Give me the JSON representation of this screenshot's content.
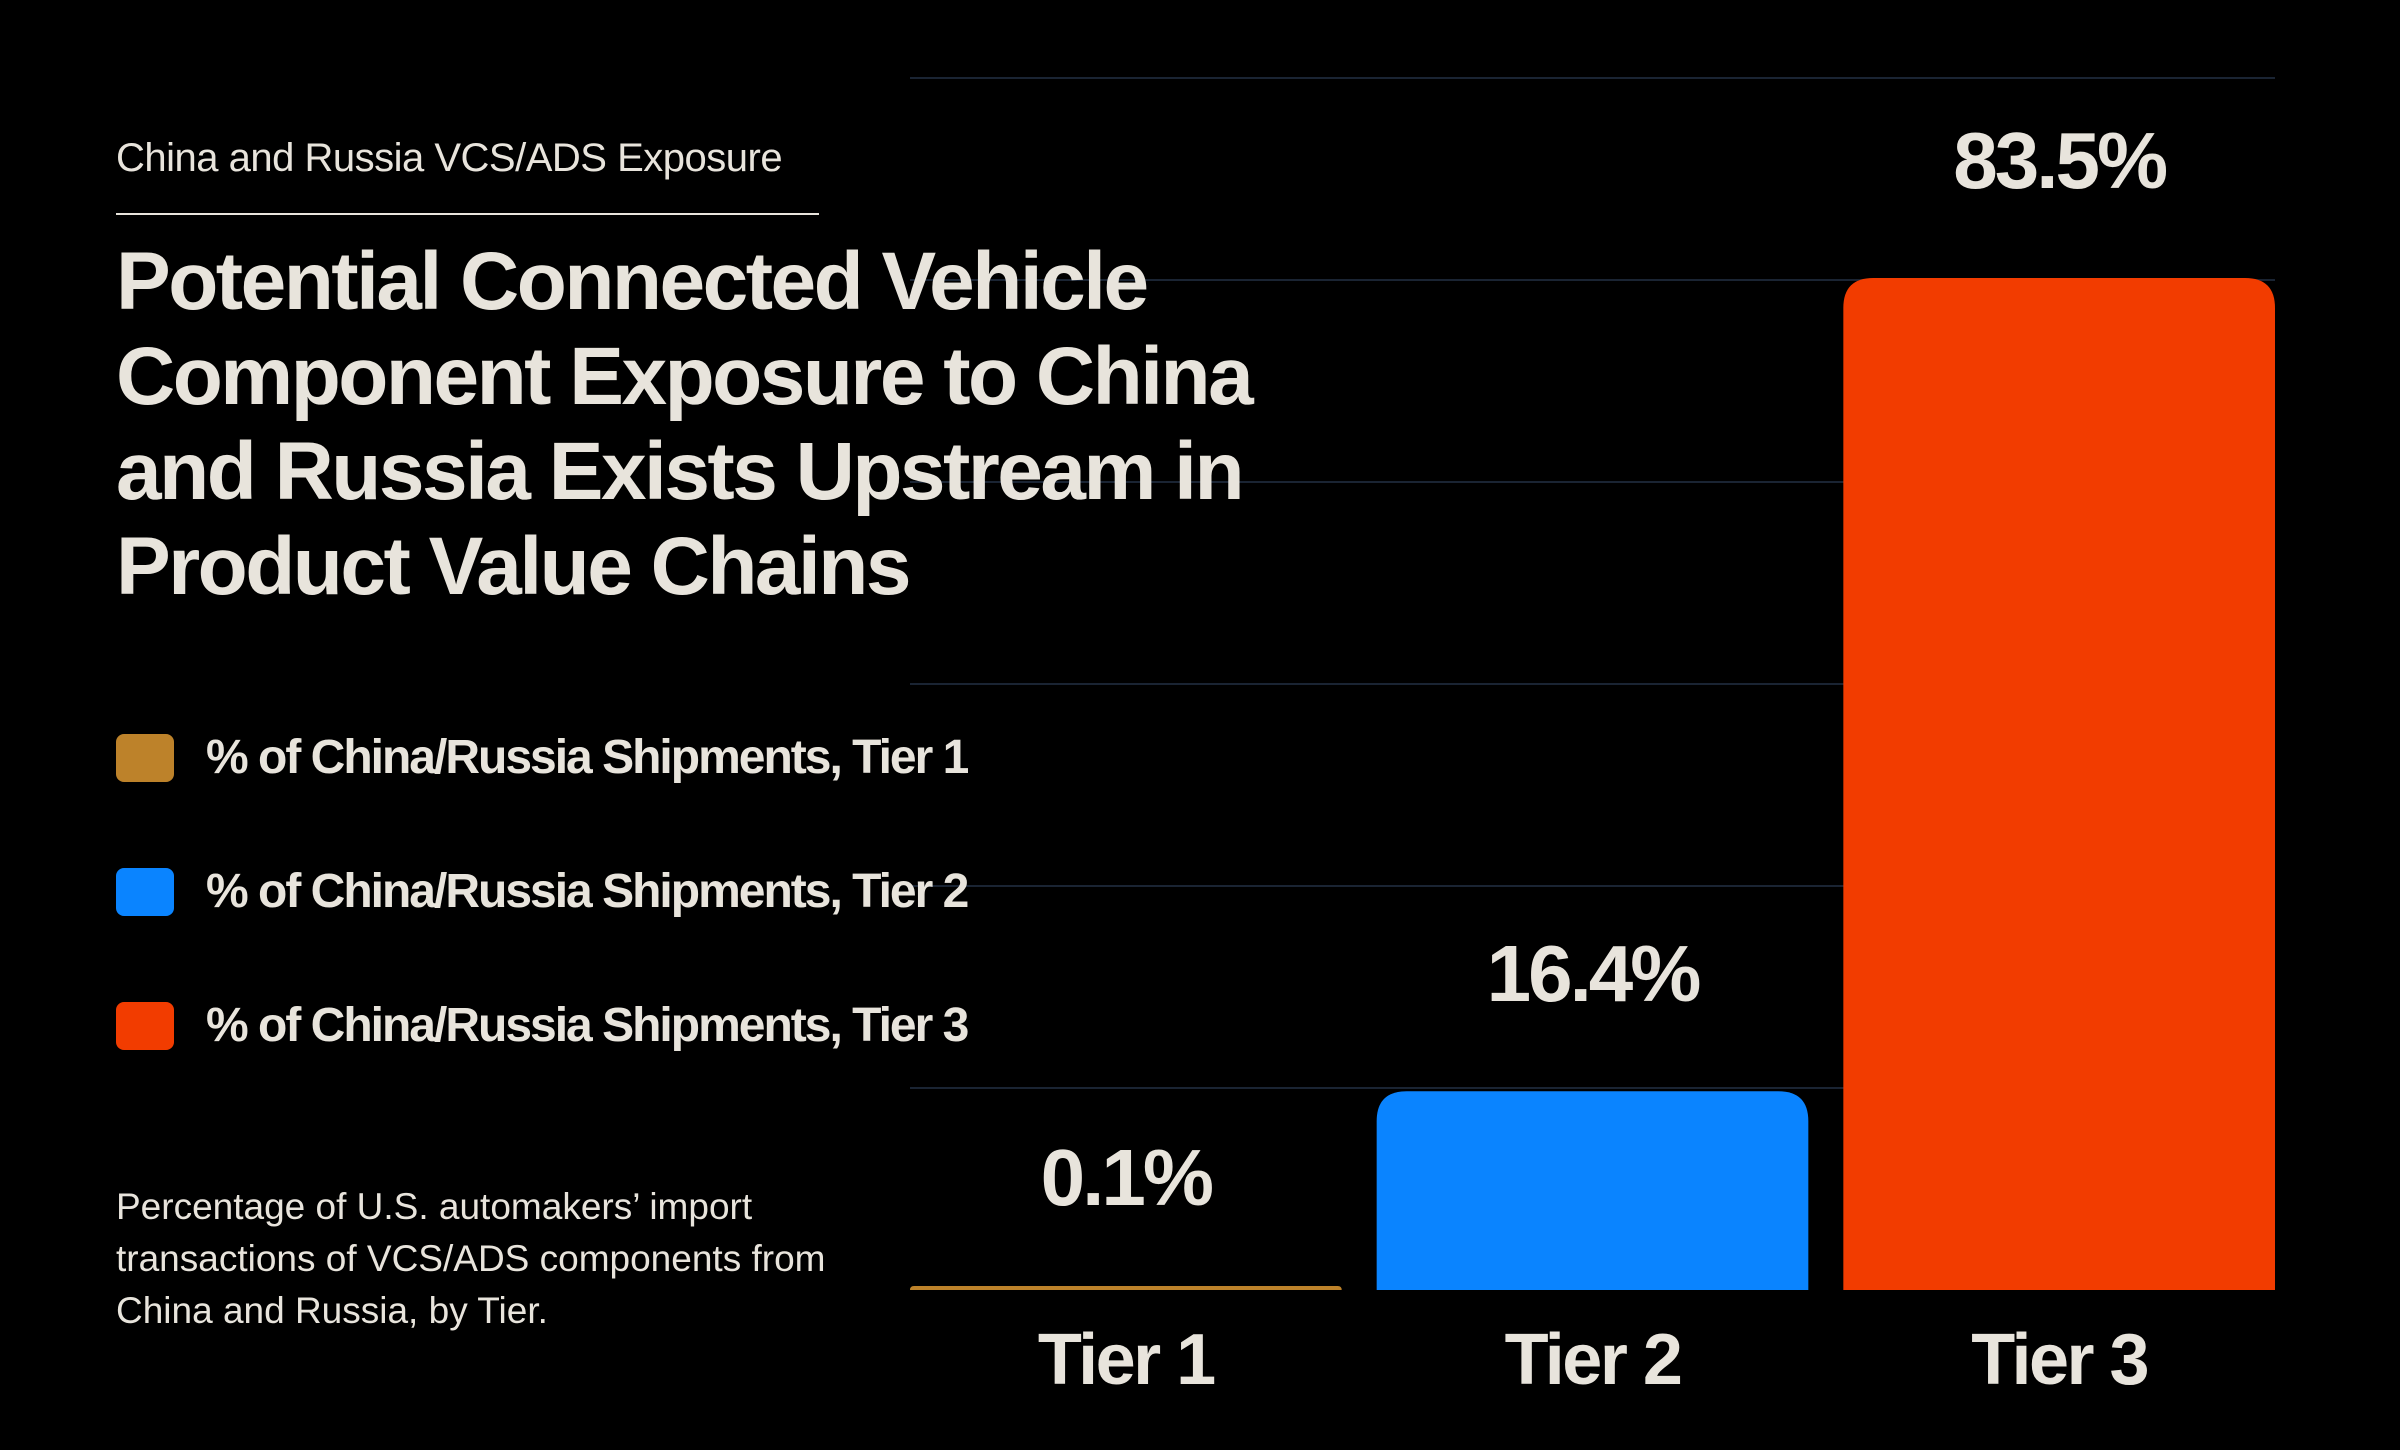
{
  "eyebrow": "China and Russia VCS/ADS Exposure",
  "title": "Potential Connected Vehicle Component Exposure to China and Russia Exists Upstream in Product Value Chains",
  "footnote": "Percentage of U.S. automakers’ import transactions of VCS/ADS components from China and Russia, by Tier.",
  "legend": [
    {
      "label": "% of China/Russia Shipments, Tier 1",
      "color": "#bd822a"
    },
    {
      "label": "% of China/Russia Shipments, Tier 2",
      "color": "#0a84ff"
    },
    {
      "label": "% of China/Russia Shipments, Tier 3",
      "color": "#f23c00"
    }
  ],
  "colors": {
    "background": "#000000",
    "text": "#e8e4dc",
    "gridline": "#1a2433"
  },
  "chart_data": {
    "type": "bar",
    "title": "Potential Connected Vehicle Component Exposure to China and Russia Exists Upstream in Product Value Chains",
    "categories": [
      "Tier 1",
      "Tier 2",
      "Tier 3"
    ],
    "values": [
      0.1,
      16.4,
      83.5
    ],
    "value_labels": [
      "0.1%",
      "16.4%",
      "83.5%"
    ],
    "colors": [
      "#bd822a",
      "#0a84ff",
      "#f23c00"
    ],
    "ylim": [
      0,
      100
    ],
    "grid": true,
    "xlabel": "",
    "ylabel": ""
  }
}
